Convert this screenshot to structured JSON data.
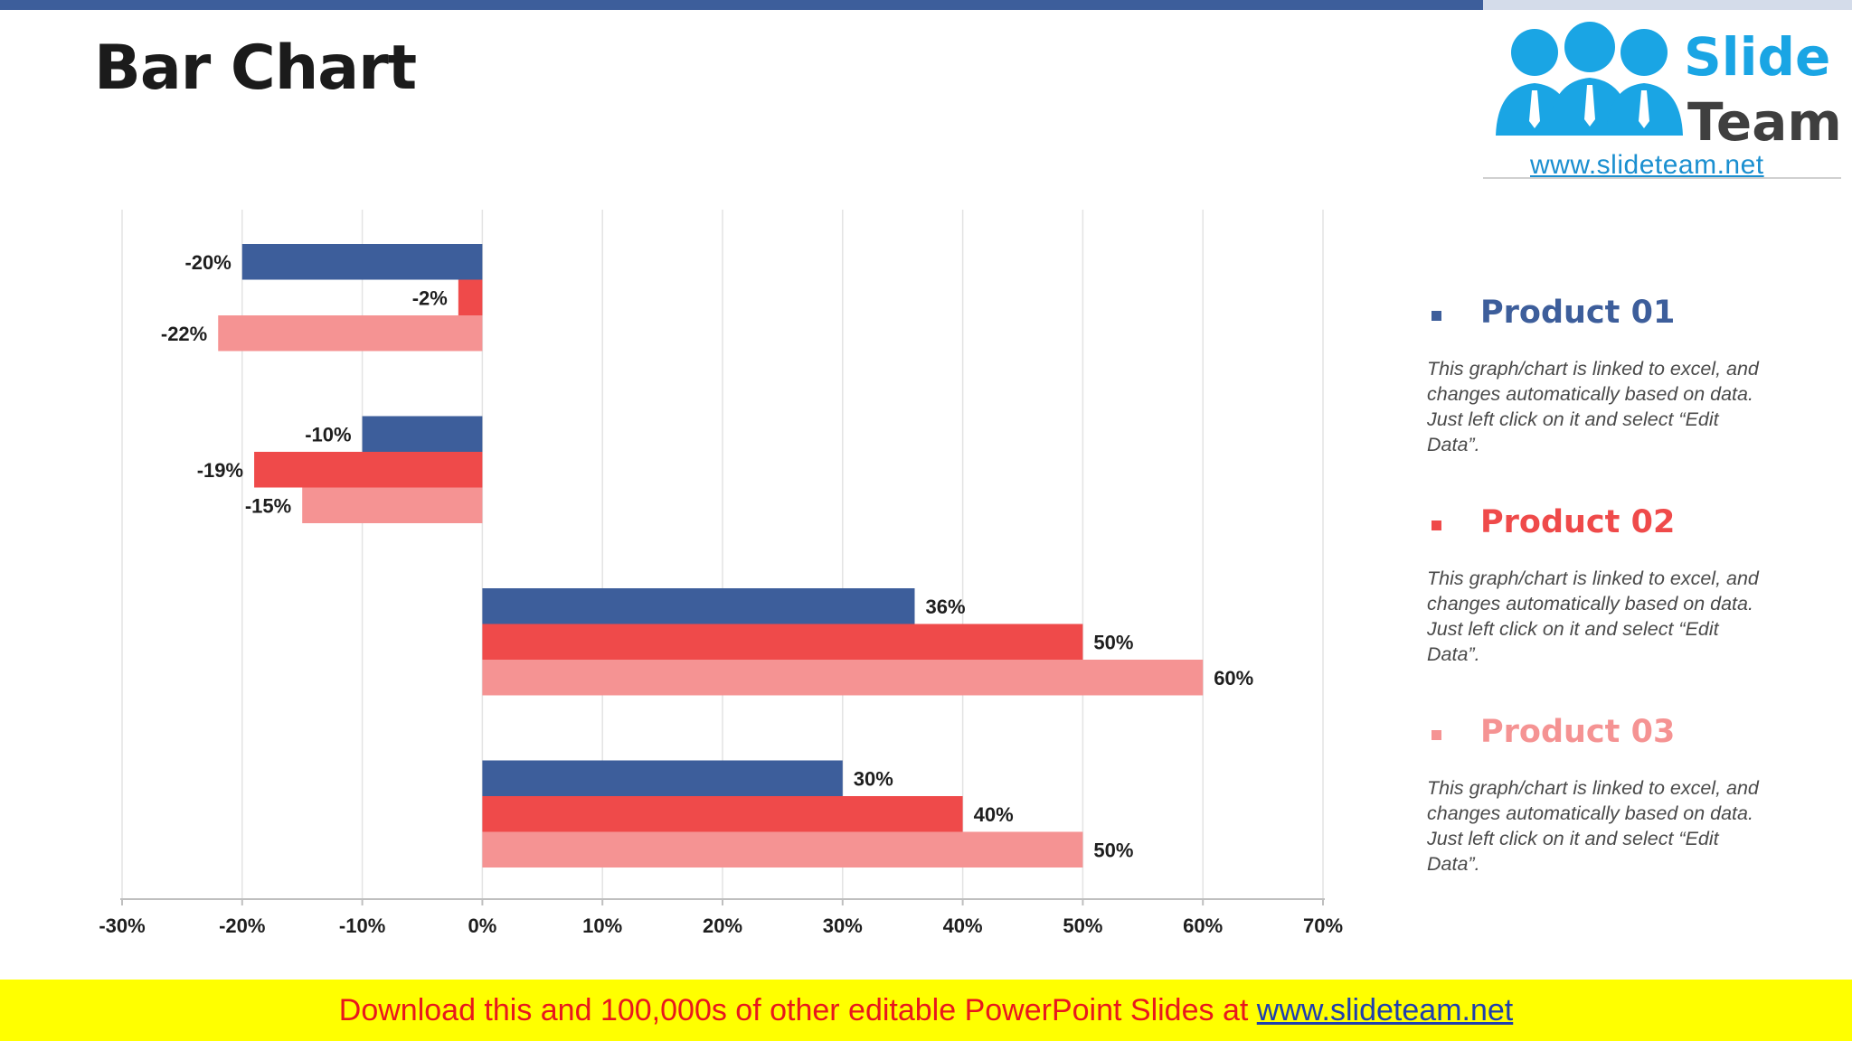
{
  "slide": {
    "title": "Bar Chart"
  },
  "logo": {
    "word1": "Slide",
    "word2": "Team",
    "url": "www.slideteam.net"
  },
  "colors": {
    "product01": "#3d5e9b",
    "product02": "#ef4a4a",
    "product03": "#f59393",
    "brand_blue": "#1aa5e4"
  },
  "legend": [
    {
      "name": "Product 01",
      "description": "This graph/chart is linked to excel, and changes automatically based on data. Just left click on it and select “Edit Data”."
    },
    {
      "name": "Product 02",
      "description": "This graph/chart is linked to excel, and changes automatically based on data. Just left click on it and select “Edit Data”."
    },
    {
      "name": "Product 03",
      "description": "This graph/chart is linked to excel, and changes automatically based on data. Just left click on it and select “Edit Data”."
    }
  ],
  "chart_data": {
    "type": "bar",
    "orientation": "horizontal",
    "title": "",
    "xlabel": "",
    "ylabel": "",
    "xlim": [
      -30,
      70
    ],
    "x_ticks": [
      -30,
      -20,
      -10,
      0,
      10,
      20,
      30,
      40,
      50,
      60,
      70
    ],
    "x_tick_labels": [
      "-30%",
      "-20%",
      "-10%",
      "0%",
      "10%",
      "20%",
      "30%",
      "40%",
      "50%",
      "60%",
      "70%"
    ],
    "grid": true,
    "legend_position": "right",
    "groups": 4,
    "series": [
      {
        "name": "Product 01",
        "values": [
          -20,
          -10,
          36,
          30
        ],
        "labels": [
          "-20%",
          "-10%",
          "36%",
          "30%"
        ]
      },
      {
        "name": "Product 02",
        "values": [
          -2,
          -19,
          50,
          40
        ],
        "labels": [
          "-2%",
          "-19%",
          "50%",
          "40%"
        ]
      },
      {
        "name": "Product 03",
        "values": [
          -22,
          -15,
          60,
          50
        ],
        "labels": [
          "-22%",
          "-15%",
          "60%",
          "50%"
        ]
      }
    ]
  },
  "footer": {
    "text": "Download this and 100,000s of other editable PowerPoint Slides at ",
    "link": "www.slideteam.net"
  }
}
